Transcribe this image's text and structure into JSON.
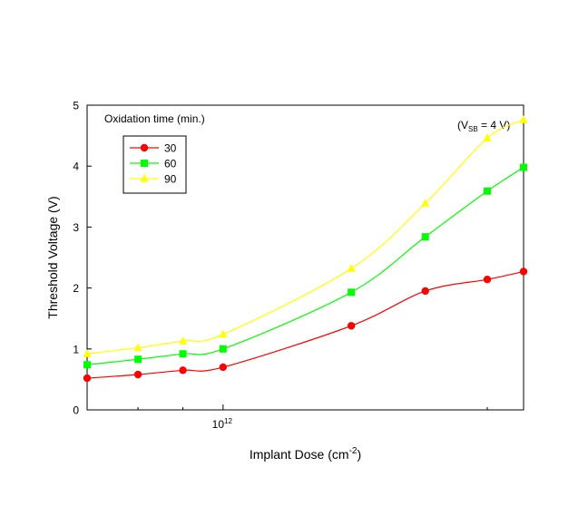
{
  "chart_data": {
    "type": "line",
    "xlabel": "Implant Dose (cm",
    "xlabel_sup": "-2",
    "xlabel_close": ")",
    "ylabel": "Threshold Voltage (V)",
    "xscale": "log",
    "xlim": [
      700000000000.0,
      2200000000000.0
    ],
    "ylim": [
      0,
      5
    ],
    "yticks": [
      0,
      1,
      2,
      3,
      4,
      5
    ],
    "xtick": {
      "value": 1000000000000.0,
      "base": "10",
      "exp": "12"
    },
    "grid": false,
    "legend": {
      "title": "Oxidation time (min.)",
      "placement": "upper-left"
    },
    "annotation": {
      "prefix": "(V",
      "sub": "SB",
      "suffix": " = 4 V)"
    },
    "series": [
      {
        "name": "30",
        "color": "#ff0000",
        "marker": "circle",
        "x": [
          700000000000.0,
          800000000000.0,
          900000000000.0,
          1000000000000.0,
          1400000000000.0,
          1700000000000.0,
          2000000000000.0,
          2200000000000.0
        ],
        "y": [
          0.52,
          0.58,
          0.65,
          0.7,
          1.38,
          1.95,
          2.14,
          2.27
        ]
      },
      {
        "name": "60",
        "color": "#00ff00",
        "marker": "square",
        "x": [
          700000000000.0,
          800000000000.0,
          900000000000.0,
          1000000000000.0,
          1400000000000.0,
          1700000000000.0,
          2000000000000.0,
          2200000000000.0
        ],
        "y": [
          0.74,
          0.83,
          0.92,
          1.0,
          1.93,
          2.84,
          3.59,
          3.98
        ]
      },
      {
        "name": "90",
        "color": "#ffff00",
        "marker": "triangle",
        "x": [
          700000000000.0,
          800000000000.0,
          900000000000.0,
          1000000000000.0,
          1400000000000.0,
          1700000000000.0,
          2000000000000.0,
          2200000000000.0
        ],
        "y": [
          0.92,
          1.02,
          1.13,
          1.24,
          2.32,
          3.39,
          4.46,
          4.76
        ]
      }
    ]
  }
}
